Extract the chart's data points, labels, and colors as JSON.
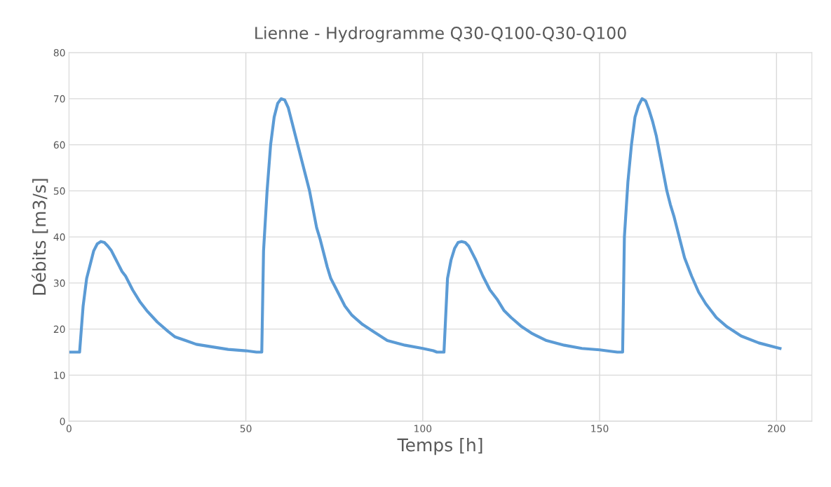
{
  "chart_data": {
    "type": "line",
    "title": "Lienne - Hydrogramme Q30-Q100-Q30-Q100",
    "xlabel": "Temps [h]",
    "ylabel": "Débits [m3/s]",
    "x": [
      0,
      3,
      4,
      5,
      6,
      7,
      8,
      9,
      10,
      11,
      12,
      13,
      14,
      15,
      16,
      18,
      20,
      22,
      25,
      28,
      30,
      33,
      36,
      40,
      45,
      50,
      53,
      54.5,
      55,
      56,
      57,
      58,
      59,
      60,
      61,
      62,
      63,
      64,
      65,
      66,
      67,
      68,
      69,
      70,
      71,
      72,
      73,
      74,
      76,
      78,
      80,
      83,
      86,
      90,
      95,
      100,
      103,
      104,
      106,
      107,
      108,
      109,
      110,
      111,
      112,
      113,
      114,
      115,
      117,
      119,
      121,
      123,
      125,
      128,
      131,
      135,
      140,
      145,
      150,
      153,
      155,
      156.5,
      157,
      158,
      159,
      160,
      161,
      162,
      163,
      164,
      165,
      166,
      167,
      168,
      169,
      170,
      171,
      172,
      173,
      174,
      176,
      178,
      180,
      183,
      186,
      190,
      195,
      200,
      201
    ],
    "series": [
      {
        "color": "#5b9bd5",
        "values": [
          15,
          15,
          25,
          31,
          34,
          37,
          38.5,
          39,
          38.8,
          38,
          37,
          35.5,
          34,
          32.5,
          31.5,
          28.5,
          26,
          24,
          21.5,
          19.5,
          18.3,
          17.5,
          16.7,
          16.2,
          15.6,
          15.3,
          15,
          15,
          37,
          50,
          60,
          66,
          69,
          70,
          69.7,
          68,
          65,
          62,
          59,
          56,
          53,
          50,
          46,
          42,
          39.5,
          36.5,
          33.5,
          31,
          28,
          25,
          23,
          21,
          19.5,
          17.5,
          16.5,
          15.8,
          15.3,
          15,
          15,
          31,
          35,
          37.5,
          38.8,
          39,
          38.8,
          38,
          36.5,
          35,
          31.5,
          28.5,
          26.5,
          24,
          22.5,
          20.5,
          19,
          17.5,
          16.5,
          15.8,
          15.5,
          15.2,
          15,
          15,
          40,
          52,
          60,
          66,
          68.5,
          70,
          69.5,
          67.5,
          65,
          62,
          58,
          54,
          50,
          47,
          44.5,
          41.5,
          38.5,
          35.5,
          31.5,
          28,
          25.5,
          22.5,
          20.5,
          18.5,
          17,
          16,
          15.8
        ]
      }
    ],
    "xlim": [
      0,
      210
    ],
    "xticks": [
      0,
      50,
      100,
      150,
      200
    ],
    "ylim": [
      0,
      80
    ],
    "yticks": [
      0,
      10,
      20,
      30,
      40,
      50,
      60,
      70,
      80
    ],
    "grid": true,
    "marker": "none",
    "line_style": "solid"
  }
}
